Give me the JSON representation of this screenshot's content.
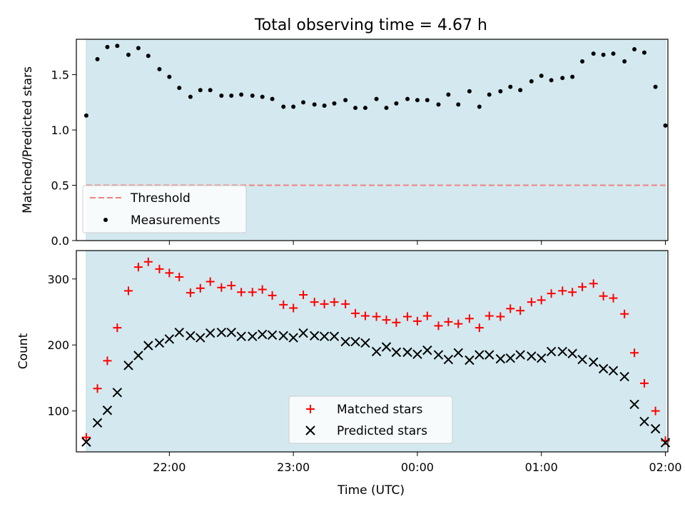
{
  "chart_data": [
    {
      "type": "scatter",
      "title": "Total observing time = 4.67 h",
      "xlabel": "",
      "ylabel": "Matched/Predicted stars",
      "ylim": [
        0,
        1.82
      ],
      "yticks": [
        "0.0",
        "0.5",
        "1.0",
        "1.5"
      ],
      "x_range_hours": [
        21.25,
        26.02
      ],
      "shaded_interval_hours": [
        21.33,
        26.0
      ],
      "shade_color": "#d3e9ef",
      "threshold": {
        "name": "Threshold",
        "value": 0.5,
        "color": "#f08080",
        "linestyle": "dashed"
      },
      "legend": [
        "Threshold",
        "Measurements"
      ],
      "legend_position": "lower-left",
      "series": [
        {
          "name": "Measurements",
          "color": "#000000",
          "marker": "dot",
          "x": [
            21.33,
            21.42,
            21.5,
            21.58,
            21.67,
            21.75,
            21.83,
            21.92,
            22.0,
            22.08,
            22.17,
            22.25,
            22.33,
            22.42,
            22.5,
            22.58,
            22.67,
            22.75,
            22.83,
            22.92,
            23.0,
            23.08,
            23.17,
            23.25,
            23.33,
            23.42,
            23.5,
            23.58,
            23.67,
            23.75,
            23.83,
            23.92,
            24.0,
            24.08,
            24.17,
            24.25,
            24.33,
            24.42,
            24.5,
            24.58,
            24.67,
            24.75,
            24.83,
            24.92,
            25.0,
            25.08,
            25.17,
            25.25,
            25.33,
            25.42,
            25.5,
            25.58,
            25.67,
            25.75,
            25.83,
            25.92,
            26.0
          ],
          "y": [
            1.13,
            1.64,
            1.75,
            1.76,
            1.68,
            1.74,
            1.67,
            1.55,
            1.48,
            1.38,
            1.3,
            1.36,
            1.36,
            1.31,
            1.31,
            1.32,
            1.31,
            1.3,
            1.28,
            1.21,
            1.21,
            1.25,
            1.23,
            1.22,
            1.24,
            1.27,
            1.2,
            1.2,
            1.28,
            1.2,
            1.24,
            1.28,
            1.27,
            1.27,
            1.23,
            1.32,
            1.23,
            1.35,
            1.21,
            1.32,
            1.35,
            1.39,
            1.36,
            1.44,
            1.49,
            1.45,
            1.47,
            1.48,
            1.62,
            1.69,
            1.68,
            1.69,
            1.62,
            1.73,
            1.7,
            1.39,
            1.04
          ]
        }
      ]
    },
    {
      "type": "scatter",
      "title": "",
      "xlabel": "Time (UTC)",
      "ylabel": "Count",
      "ylim": [
        38,
        343
      ],
      "yticks": [
        "100",
        "200",
        "300"
      ],
      "xticks": [
        "22:00",
        "23:00",
        "00:00",
        "01:00",
        "02:00"
      ],
      "x_range_hours": [
        21.25,
        26.02
      ],
      "shaded_interval_hours": [
        21.33,
        26.0
      ],
      "shade_color": "#d3e9ef",
      "legend": [
        "Matched stars",
        "Predicted stars"
      ],
      "legend_position": "lower-center",
      "series": [
        {
          "name": "Matched stars",
          "color": "#ff0000",
          "marker": "plus",
          "x": [
            21.33,
            21.42,
            21.5,
            21.58,
            21.67,
            21.75,
            21.83,
            21.92,
            22.0,
            22.08,
            22.17,
            22.25,
            22.33,
            22.42,
            22.5,
            22.58,
            22.67,
            22.75,
            22.83,
            22.92,
            23.0,
            23.08,
            23.17,
            23.25,
            23.33,
            23.42,
            23.5,
            23.58,
            23.67,
            23.75,
            23.83,
            23.92,
            24.0,
            24.08,
            24.17,
            24.25,
            24.33,
            24.42,
            24.5,
            24.58,
            24.67,
            24.75,
            24.83,
            24.92,
            25.0,
            25.08,
            25.17,
            25.25,
            25.33,
            25.42,
            25.5,
            25.58,
            25.67,
            25.75,
            25.83,
            25.92,
            26.0
          ],
          "y": [
            60,
            134,
            176,
            226,
            282,
            318,
            326,
            315,
            309,
            303,
            279,
            286,
            296,
            287,
            290,
            280,
            280,
            284,
            275,
            261,
            256,
            276,
            265,
            262,
            265,
            262,
            248,
            244,
            243,
            238,
            234,
            243,
            236,
            244,
            229,
            235,
            232,
            240,
            226,
            244,
            243,
            255,
            252,
            265,
            268,
            278,
            282,
            280,
            288,
            293,
            274,
            271,
            247,
            188,
            142,
            100,
            55
          ]
        },
        {
          "name": "Predicted stars",
          "color": "#000000",
          "marker": "x",
          "x": [
            21.33,
            21.42,
            21.5,
            21.58,
            21.67,
            21.75,
            21.83,
            21.92,
            22.0,
            22.08,
            22.17,
            22.25,
            22.33,
            22.42,
            22.5,
            22.58,
            22.67,
            22.75,
            22.83,
            22.92,
            23.0,
            23.08,
            23.17,
            23.25,
            23.33,
            23.42,
            23.5,
            23.58,
            23.67,
            23.75,
            23.83,
            23.92,
            24.0,
            24.08,
            24.17,
            24.25,
            24.33,
            24.42,
            24.5,
            24.58,
            24.67,
            24.75,
            24.83,
            24.92,
            25.0,
            25.08,
            25.17,
            25.25,
            25.33,
            25.42,
            25.5,
            25.58,
            25.67,
            25.75,
            25.83,
            25.92,
            26.0
          ],
          "y": [
            53,
            82,
            101,
            128,
            169,
            184,
            199,
            203,
            209,
            219,
            214,
            211,
            218,
            219,
            219,
            213,
            213,
            216,
            215,
            214,
            211,
            218,
            214,
            213,
            213,
            205,
            205,
            203,
            190,
            197,
            189,
            189,
            186,
            192,
            185,
            178,
            188,
            177,
            185,
            185,
            179,
            180,
            185,
            183,
            180,
            190,
            190,
            187,
            178,
            174,
            164,
            161,
            152,
            110,
            84,
            73,
            52
          ]
        }
      ]
    }
  ]
}
